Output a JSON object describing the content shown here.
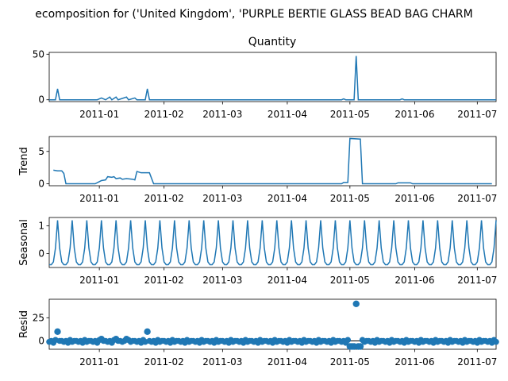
{
  "suptitle": "ecomposition for ('United Kingdom', 'PURPLE BERTIE GLASS BEAD BAG CHARM",
  "x_tick_labels": [
    "2011-01",
    "2011-02",
    "2011-03",
    "2011-04",
    "2011-05",
    "2011-06",
    "2011-07"
  ],
  "colors": {
    "series": "#1f77b4",
    "axis": "#000000"
  },
  "chart_data": [
    {
      "type": "line",
      "title": "Quantity",
      "ylabel": "",
      "x_range": [
        "2010-12-08",
        "2011-07-10"
      ],
      "ylim": [
        -2,
        52
      ],
      "yticks": [
        0,
        50
      ],
      "points": [
        [
          "2010-12-08",
          0
        ],
        [
          "2010-12-11",
          0
        ],
        [
          "2010-12-12",
          12
        ],
        [
          "2010-12-13",
          0
        ],
        [
          "2010-12-31",
          0
        ],
        [
          "2011-01-02",
          2
        ],
        [
          "2011-01-04",
          0
        ],
        [
          "2011-01-06",
          3
        ],
        [
          "2011-01-07",
          0
        ],
        [
          "2011-01-09",
          3
        ],
        [
          "2011-01-10",
          0
        ],
        [
          "2011-01-14",
          3
        ],
        [
          "2011-01-15",
          0
        ],
        [
          "2011-01-18",
          2
        ],
        [
          "2011-01-19",
          0
        ],
        [
          "2011-01-23",
          0
        ],
        [
          "2011-01-24",
          12
        ],
        [
          "2011-01-25",
          0
        ],
        [
          "2011-04-27",
          0
        ],
        [
          "2011-04-28",
          1
        ],
        [
          "2011-04-29",
          0
        ],
        [
          "2011-05-03",
          0
        ],
        [
          "2011-05-04",
          48
        ],
        [
          "2011-05-05",
          0
        ],
        [
          "2011-05-25",
          0
        ],
        [
          "2011-05-26",
          1
        ],
        [
          "2011-05-27",
          0
        ],
        [
          "2011-07-10",
          0
        ]
      ]
    },
    {
      "type": "line",
      "title": "",
      "ylabel": "Trend",
      "x_range": [
        "2010-12-08",
        "2011-07-10"
      ],
      "ylim": [
        -0.3,
        7.3
      ],
      "yticks": [
        0,
        5
      ],
      "points": [
        [
          "2010-12-10",
          2.1
        ],
        [
          "2010-12-12",
          2.0
        ],
        [
          "2010-12-14",
          2.0
        ],
        [
          "2010-12-15",
          1.6
        ],
        [
          "2010-12-16",
          0
        ],
        [
          "2010-12-30",
          0
        ],
        [
          "2011-01-02",
          0.5
        ],
        [
          "2011-01-04",
          0.6
        ],
        [
          "2011-01-05",
          1.1
        ],
        [
          "2011-01-07",
          1.0
        ],
        [
          "2011-01-08",
          1.1
        ],
        [
          "2011-01-09",
          0.8
        ],
        [
          "2011-01-11",
          0.9
        ],
        [
          "2011-01-12",
          0.7
        ],
        [
          "2011-01-14",
          0.8
        ],
        [
          "2011-01-17",
          0.7
        ],
        [
          "2011-01-18",
          0.6
        ],
        [
          "2011-01-19",
          1.9
        ],
        [
          "2011-01-21",
          1.7
        ],
        [
          "2011-01-25",
          1.7
        ],
        [
          "2011-01-27",
          0
        ],
        [
          "2011-04-27",
          0
        ],
        [
          "2011-04-28",
          0.2
        ],
        [
          "2011-04-30",
          0.2
        ],
        [
          "2011-05-01",
          7.0
        ],
        [
          "2011-05-06",
          6.9
        ],
        [
          "2011-05-07",
          0
        ],
        [
          "2011-05-23",
          0
        ],
        [
          "2011-05-24",
          0.15
        ],
        [
          "2011-05-30",
          0.15
        ],
        [
          "2011-05-31",
          0
        ],
        [
          "2011-07-08",
          0
        ]
      ]
    },
    {
      "type": "line",
      "title": "",
      "ylabel": "Seasonal",
      "x_range": [
        "2010-12-08",
        "2011-07-10"
      ],
      "ylim": [
        -0.5,
        1.3
      ],
      "yticks": [
        0,
        1
      ],
      "pattern": {
        "period_days": 7,
        "start": "2010-12-08",
        "end": "2011-07-10",
        "one_period": [
          -0.4,
          -0.4,
          -0.3,
          0.2,
          1.2,
          0.2,
          -0.3
        ]
      }
    },
    {
      "type": "scatter",
      "title": "",
      "ylabel": "Resid",
      "x_range": [
        "2010-12-08",
        "2011-07-10"
      ],
      "ylim": [
        -9,
        45
      ],
      "yticks": [
        0,
        25
      ],
      "baseline": 0,
      "pattern": {
        "start": "2010-12-08",
        "end": "2011-07-10",
        "step_days": 1,
        "cycle": [
          -1,
          0,
          -2,
          1,
          -1,
          0,
          0
        ]
      },
      "outliers": [
        [
          "2010-12-12",
          10
        ],
        [
          "2011-01-24",
          10
        ],
        [
          "2011-05-04",
          40
        ],
        [
          "2011-05-01",
          -6
        ],
        [
          "2011-05-02",
          -6
        ],
        [
          "2011-05-03",
          -6
        ],
        [
          "2011-05-05",
          -6
        ],
        [
          "2011-05-06",
          -6
        ],
        [
          "2011-01-02",
          2
        ],
        [
          "2011-01-09",
          2
        ],
        [
          "2011-01-14",
          2
        ]
      ]
    }
  ]
}
